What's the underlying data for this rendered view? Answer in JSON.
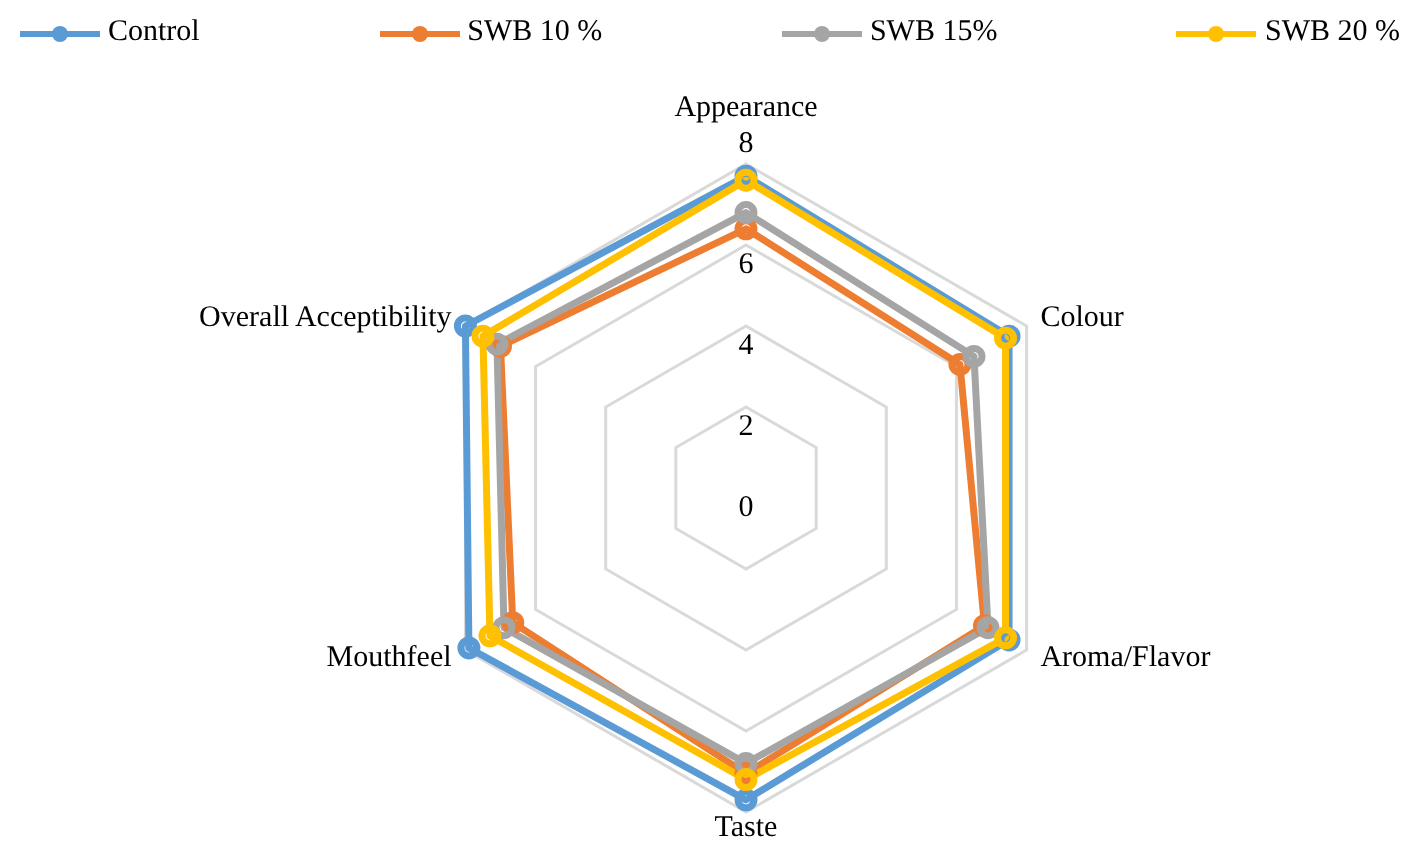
{
  "chart_data": {
    "type": "radar",
    "categories": [
      "Appearance",
      "Colour",
      "Aroma/Flavor",
      "Taste",
      "Mouthfeel",
      "Overall Acceptibility"
    ],
    "series": [
      {
        "name": "Control",
        "color": "#5b9bd5",
        "values": [
          7.7,
          7.5,
          7.5,
          7.7,
          7.9,
          8.0
        ]
      },
      {
        "name": "SWB 10 %",
        "color": "#ed7d31",
        "values": [
          6.4,
          6.1,
          6.8,
          7.05,
          6.65,
          7.0
        ]
      },
      {
        "name": "SWB 15%",
        "color": "#a5a5a5",
        "values": [
          6.8,
          6.5,
          6.9,
          6.8,
          6.9,
          7.1
        ]
      },
      {
        "name": "SWB 20 %",
        "color": "#ffc000",
        "values": [
          7.6,
          7.4,
          7.4,
          7.2,
          7.3,
          7.5
        ]
      }
    ],
    "ylim": [
      0,
      8
    ],
    "yticks": [
      0,
      2,
      4,
      6,
      8
    ],
    "grid": true,
    "legend": "top",
    "marker": "circle",
    "line_style": "solid"
  }
}
